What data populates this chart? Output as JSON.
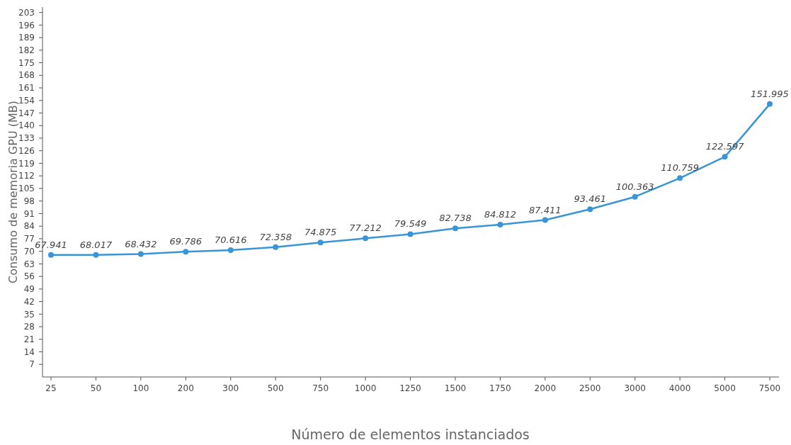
{
  "chart_data": {
    "type": "line",
    "xlabel": "Número de elementos instanciados",
    "ylabel": "Consumo de memoria GPU (MB)",
    "categories": [
      "25",
      "50",
      "100",
      "200",
      "300",
      "500",
      "750",
      "1000",
      "1250",
      "1500",
      "1750",
      "2000",
      "2500",
      "3000",
      "4000",
      "5000",
      "7500"
    ],
    "series": [
      {
        "color": "#3a95d6",
        "values": [
          67.941,
          68.017,
          68.432,
          69.786,
          70.616,
          72.358,
          74.875,
          77.212,
          79.549,
          82.738,
          84.812,
          87.411,
          93.461,
          100.363,
          110.759,
          122.597,
          151.995
        ]
      }
    ],
    "ylim": [
      0,
      206
    ],
    "yticks": [
      7,
      14,
      21,
      28,
      35,
      42,
      49,
      56,
      63,
      70,
      77,
      84,
      91,
      98,
      105,
      112,
      119,
      126,
      133,
      140,
      147,
      154,
      161,
      168,
      175,
      182,
      189,
      196,
      203
    ],
    "grid": false,
    "marker": "circle",
    "line_style": "solid",
    "data_labels": true
  }
}
